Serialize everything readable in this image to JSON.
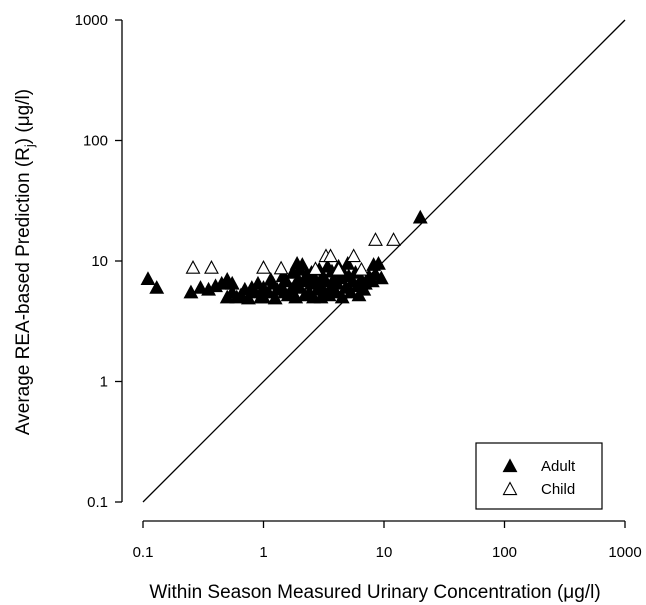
{
  "chart_data": {
    "type": "scatter",
    "xscale": "log",
    "yscale": "log",
    "xlim": [
      0.1,
      1000
    ],
    "ylim": [
      0.1,
      1000
    ],
    "xticks": [
      "0.1",
      "1",
      "10",
      "100",
      "1000"
    ],
    "yticks": [
      "0.1",
      "1",
      "10",
      "100",
      "1000"
    ],
    "xlabel": "Within Season Measured Urinary Concentration (μg/l)",
    "ylabel_main": "Average REA-based Prediction (R",
    "ylabel_sub": "j",
    "ylabel_end": ") (μg/l)",
    "grid": false,
    "legend_position": "bottom-right",
    "reference_line": {
      "name": "1:1 line",
      "x": [
        0.1,
        1000
      ],
      "y": [
        0.1,
        1000
      ]
    },
    "series": [
      {
        "name": "Adult",
        "marker": "filled-triangle",
        "color": "#000000",
        "points": [
          [
            0.11,
            7.1
          ],
          [
            0.13,
            6.0
          ],
          [
            0.25,
            5.5
          ],
          [
            0.3,
            6.0
          ],
          [
            0.35,
            5.8
          ],
          [
            0.4,
            6.2
          ],
          [
            0.45,
            6.5
          ],
          [
            0.5,
            5.0
          ],
          [
            0.5,
            7.0
          ],
          [
            0.55,
            5.5
          ],
          [
            0.55,
            6.5
          ],
          [
            0.6,
            5.0
          ],
          [
            0.65,
            5.2
          ],
          [
            0.7,
            5.8
          ],
          [
            0.75,
            4.9
          ],
          [
            0.8,
            6.0
          ],
          [
            0.85,
            5.5
          ],
          [
            0.9,
            6.5
          ],
          [
            0.95,
            5.0
          ],
          [
            1.0,
            6.0
          ],
          [
            1.0,
            5.0
          ],
          [
            1.1,
            5.5
          ],
          [
            1.15,
            7.0
          ],
          [
            1.2,
            6.5
          ],
          [
            1.25,
            4.9
          ],
          [
            1.3,
            5.8
          ],
          [
            1.4,
            6.0
          ],
          [
            1.45,
            7.5
          ],
          [
            1.5,
            5.5
          ],
          [
            1.55,
            6.8
          ],
          [
            1.6,
            5.2
          ],
          [
            1.7,
            5.8
          ],
          [
            1.75,
            8.0
          ],
          [
            1.8,
            6.2
          ],
          [
            1.85,
            5.0
          ],
          [
            1.9,
            9.5
          ],
          [
            1.95,
            7.0
          ],
          [
            2.0,
            6.0
          ],
          [
            2.0,
            8.5
          ],
          [
            2.1,
            9.3
          ],
          [
            2.2,
            5.2
          ],
          [
            2.25,
            6.8
          ],
          [
            2.3,
            7.8
          ],
          [
            2.4,
            5.5
          ],
          [
            2.5,
            6.5
          ],
          [
            2.5,
            8.0
          ],
          [
            2.6,
            5.0
          ],
          [
            2.7,
            7.0
          ],
          [
            2.8,
            5.8
          ],
          [
            2.9,
            8.5
          ],
          [
            3.0,
            6.2
          ],
          [
            3.0,
            5.0
          ],
          [
            3.1,
            7.5
          ],
          [
            3.2,
            5.5
          ],
          [
            3.3,
            6.8
          ],
          [
            3.4,
            9.0
          ],
          [
            3.5,
            5.2
          ],
          [
            3.6,
            6.0
          ],
          [
            3.7,
            8.2
          ],
          [
            3.8,
            7.0
          ],
          [
            4.0,
            5.5
          ],
          [
            4.1,
            6.5
          ],
          [
            4.2,
            9.0
          ],
          [
            4.4,
            7.2
          ],
          [
            4.5,
            5.0
          ],
          [
            4.6,
            8.0
          ],
          [
            4.8,
            6.0
          ],
          [
            5.0,
            9.5
          ],
          [
            5.1,
            7.5
          ],
          [
            5.3,
            5.5
          ],
          [
            5.5,
            6.8
          ],
          [
            5.8,
            8.0
          ],
          [
            6.0,
            6.2
          ],
          [
            6.2,
            5.2
          ],
          [
            6.5,
            7.0
          ],
          [
            6.8,
            5.8
          ],
          [
            7.0,
            6.5
          ],
          [
            7.5,
            7.5
          ],
          [
            8.0,
            6.8
          ],
          [
            8.2,
            9.3
          ],
          [
            8.5,
            7.8
          ],
          [
            9.0,
            9.5
          ],
          [
            9.5,
            7.2
          ],
          [
            20.0,
            23.0
          ]
        ]
      },
      {
        "name": "Child",
        "marker": "open-triangle",
        "color": "#000000",
        "points": [
          [
            0.26,
            8.8
          ],
          [
            0.37,
            8.8
          ],
          [
            1.0,
            8.8
          ],
          [
            1.4,
            8.7
          ],
          [
            3.3,
            11.0
          ],
          [
            3.6,
            11.0
          ],
          [
            5.6,
            11.0
          ],
          [
            8.5,
            15.0
          ],
          [
            12.0,
            15.0
          ],
          [
            6.5,
            8.5
          ],
          [
            2.7,
            8.6
          ],
          [
            4.2,
            8.5
          ]
        ]
      }
    ]
  }
}
